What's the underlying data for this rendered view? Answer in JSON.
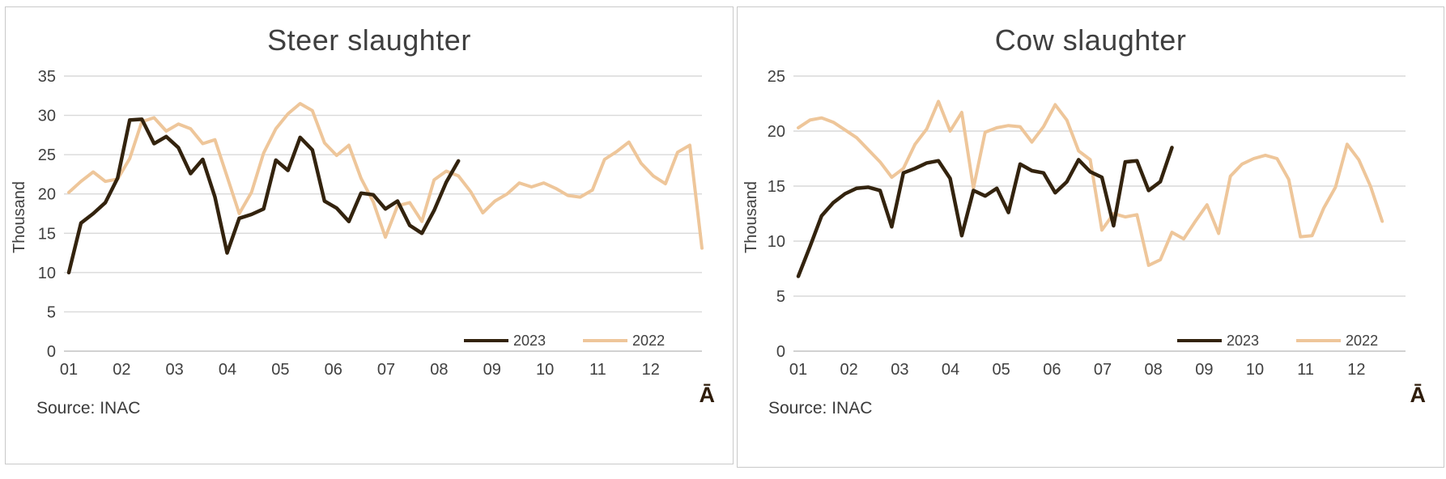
{
  "colors": {
    "series_2023": "#33230e",
    "series_2022": "#eec69a",
    "gridline": "#d9d9d9",
    "axis_line": "#c2c2c2",
    "axis_text": "#404040",
    "panel_border": "#c9c9c9"
  },
  "chart_data": [
    {
      "type": "line",
      "title": "Steer slaughter",
      "ylabel": "Thousand",
      "source_note": "Source: INAC",
      "corner_glyph": "Ā",
      "grid": true,
      "legend_position": "inside-bottom-right-above-axis",
      "ylim": [
        0,
        35
      ],
      "y_ticks": [
        35,
        30,
        25,
        20,
        15,
        10,
        5,
        0
      ],
      "x_tick_labels": [
        "01",
        "02",
        "03",
        "04",
        "05",
        "06",
        "07",
        "08",
        "09",
        "10",
        "11",
        "12"
      ],
      "x_unit": "month (weekly data points)",
      "series": [
        {
          "name": "2023",
          "values": [
            10.0,
            16.3,
            17.5,
            18.9,
            22.0,
            29.4,
            29.5,
            26.4,
            27.3,
            25.9,
            22.6,
            24.4,
            19.6,
            12.5,
            16.9,
            17.4,
            18.1,
            24.3,
            23.0,
            27.2,
            25.6,
            19.1,
            18.2,
            16.5,
            20.1,
            19.9,
            18.1,
            19.1,
            16.0,
            15.0,
            17.9,
            21.5,
            24.2
          ]
        },
        {
          "name": "2022",
          "values": [
            20.2,
            21.6,
            22.8,
            21.6,
            21.9,
            24.5,
            29.2,
            29.7,
            28.0,
            28.9,
            28.3,
            26.4,
            26.9,
            22.2,
            17.5,
            20.2,
            25.2,
            28.3,
            30.2,
            31.5,
            30.6,
            26.5,
            24.9,
            26.2,
            22.0,
            19.0,
            14.5,
            18.5,
            18.9,
            16.5,
            21.8,
            22.9,
            22.3,
            20.3,
            17.6,
            19.1,
            20.0,
            21.4,
            20.9,
            21.4,
            20.7,
            19.8,
            19.6,
            20.5,
            24.4,
            25.4,
            26.6,
            23.9,
            22.3,
            21.3,
            25.3,
            26.2,
            13.1
          ]
        }
      ]
    },
    {
      "type": "line",
      "title": "Cow slaughter",
      "ylabel": "Thousand",
      "source_note": "Source: INAC",
      "corner_glyph": "Ā",
      "grid": true,
      "legend_position": "inside-bottom-right-above-axis",
      "ylim": [
        0,
        25
      ],
      "y_ticks": [
        25,
        20,
        15,
        10,
        5,
        0
      ],
      "x_tick_labels": [
        "01",
        "02",
        "03",
        "04",
        "05",
        "06",
        "07",
        "08",
        "09",
        "10",
        "11",
        "12"
      ],
      "x_unit": "month (weekly data points)",
      "series": [
        {
          "name": "2023",
          "values": [
            6.8,
            9.5,
            12.3,
            13.5,
            14.3,
            14.8,
            14.9,
            14.6,
            11.3,
            16.2,
            16.6,
            17.1,
            17.3,
            15.7,
            10.5,
            14.6,
            14.1,
            14.8,
            12.6,
            17.0,
            16.4,
            16.2,
            14.4,
            15.4,
            17.4,
            16.3,
            15.8,
            11.4,
            17.2,
            17.3,
            14.6,
            15.4,
            18.5
          ]
        },
        {
          "name": "2022",
          "values": [
            20.3,
            21.0,
            21.2,
            20.8,
            20.1,
            19.4,
            18.3,
            17.2,
            15.8,
            16.6,
            18.8,
            20.2,
            22.7,
            20.0,
            21.7,
            14.8,
            19.9,
            20.3,
            20.5,
            20.4,
            19.0,
            20.4,
            22.4,
            21.0,
            18.2,
            17.4,
            11.0,
            12.5,
            12.2,
            12.4,
            7.8,
            8.3,
            10.8,
            10.2,
            11.8,
            13.3,
            10.7,
            15.9,
            17.0,
            17.5,
            17.8,
            17.5,
            15.6,
            10.4,
            10.5,
            13.0,
            14.9,
            18.8,
            17.4,
            15.0,
            11.8
          ]
        }
      ]
    }
  ]
}
